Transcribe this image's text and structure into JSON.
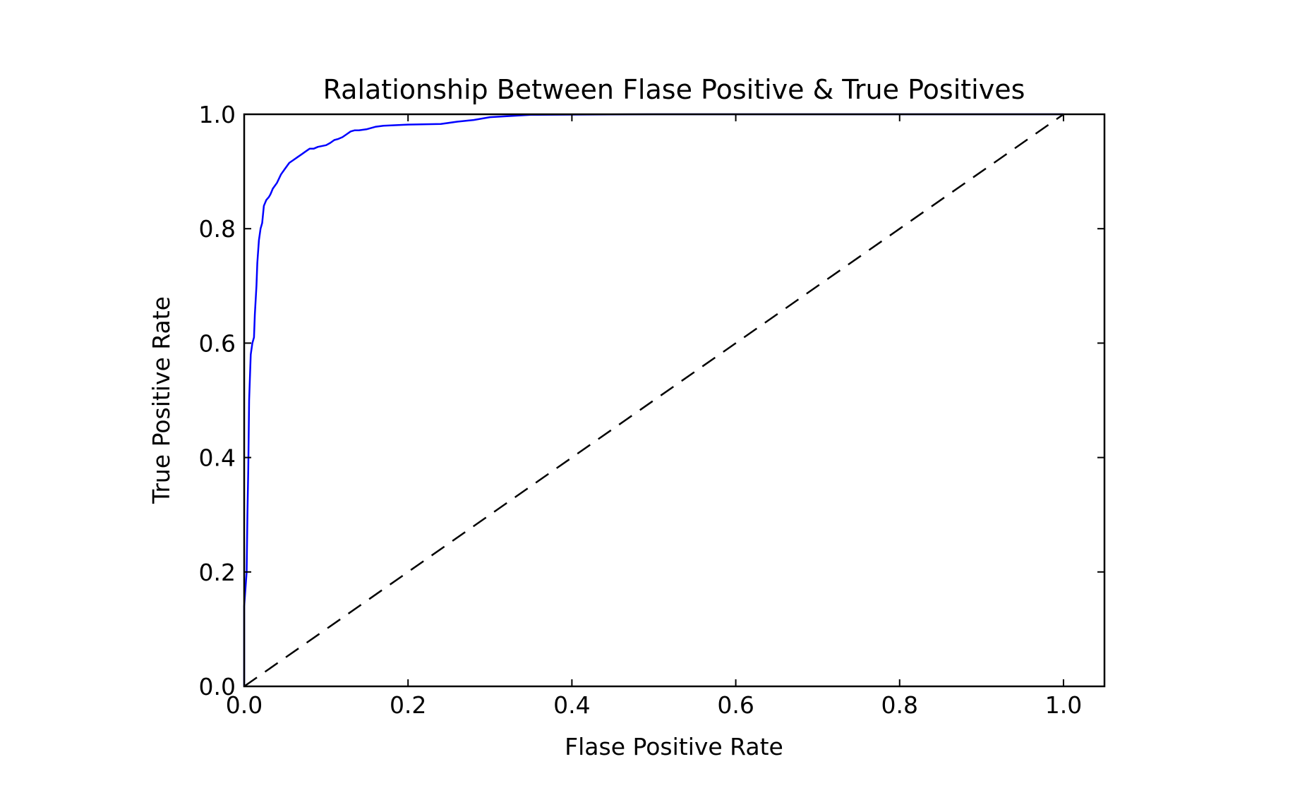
{
  "chart_data": {
    "type": "line",
    "title": "Ralationship Between Flase Positive & True Positives",
    "xlabel": "Flase Positive Rate",
    "ylabel": "True Positive Rate",
    "xlim": [
      0.0,
      1.05
    ],
    "ylim": [
      0.0,
      1.0
    ],
    "grid": false,
    "x_ticks": [
      "0.0",
      "0.2",
      "0.4",
      "0.6",
      "0.8",
      "1.0"
    ],
    "y_ticks": [
      "0.0",
      "0.2",
      "0.4",
      "0.6",
      "0.8",
      "1.0"
    ],
    "series": [
      {
        "name": "",
        "color": "#0000ff",
        "style": "solid",
        "x": [
          0.0,
          0.0,
          0.003,
          0.004,
          0.005,
          0.006,
          0.008,
          0.01,
          0.012,
          0.013,
          0.015,
          0.016,
          0.018,
          0.02,
          0.022,
          0.024,
          0.027,
          0.03,
          0.032,
          0.035,
          0.04,
          0.045,
          0.05,
          0.055,
          0.06,
          0.065,
          0.07,
          0.075,
          0.08,
          0.085,
          0.09,
          0.1,
          0.105,
          0.11,
          0.115,
          0.12,
          0.125,
          0.13,
          0.135,
          0.14,
          0.15,
          0.16,
          0.17,
          0.2,
          0.24,
          0.26,
          0.28,
          0.3,
          0.35,
          0.5,
          1.0
        ],
        "y": [
          0.0,
          0.14,
          0.2,
          0.3,
          0.38,
          0.5,
          0.58,
          0.6,
          0.61,
          0.65,
          0.7,
          0.74,
          0.78,
          0.8,
          0.81,
          0.84,
          0.85,
          0.855,
          0.86,
          0.87,
          0.88,
          0.895,
          0.905,
          0.915,
          0.92,
          0.925,
          0.93,
          0.935,
          0.94,
          0.94,
          0.943,
          0.946,
          0.95,
          0.955,
          0.957,
          0.96,
          0.965,
          0.97,
          0.972,
          0.972,
          0.974,
          0.978,
          0.98,
          0.982,
          0.983,
          0.987,
          0.99,
          0.995,
          0.999,
          1.0,
          1.0
        ]
      },
      {
        "name": "",
        "color": "#000000",
        "style": "dashed",
        "x": [
          0.0,
          1.0
        ],
        "y": [
          0.0,
          1.0
        ]
      }
    ]
  }
}
